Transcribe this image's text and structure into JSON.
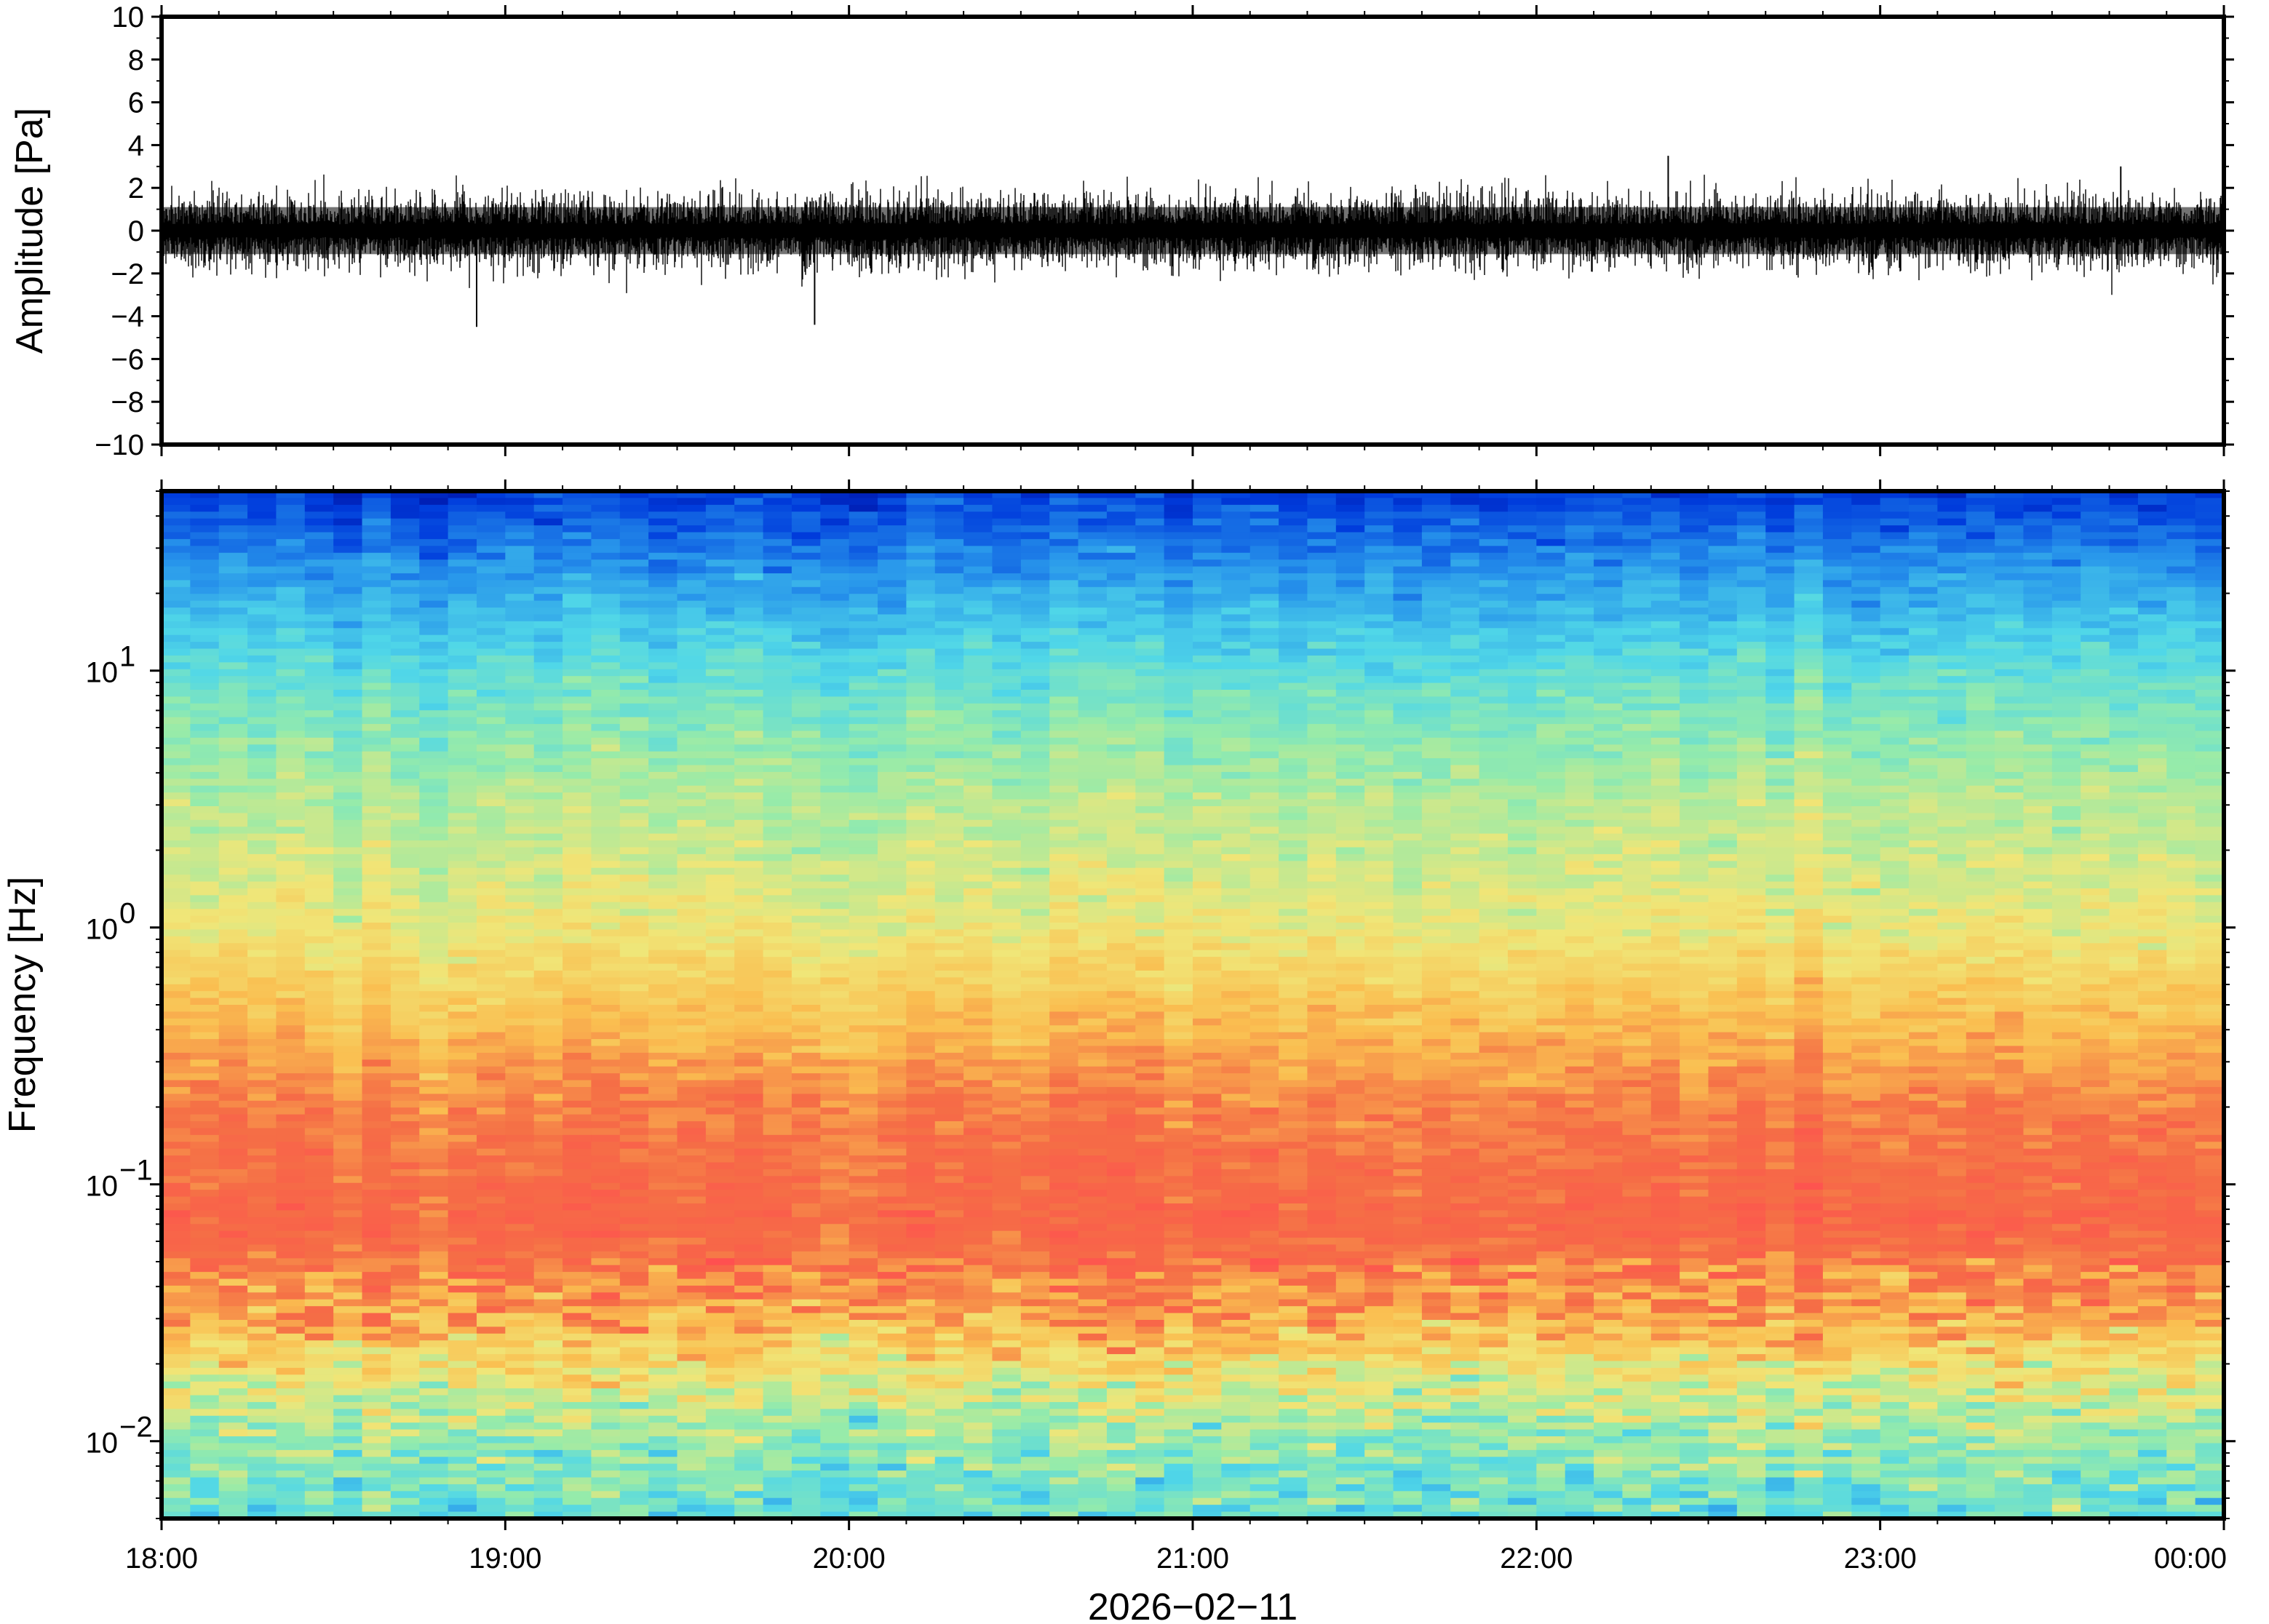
{
  "chart_data": [
    {
      "type": "line",
      "panel": "waveform",
      "ylabel": "Amplitude [Pa]",
      "ylim": [
        -10,
        10
      ],
      "yticks": [
        -10,
        -8,
        -6,
        -4,
        -2,
        0,
        2,
        4,
        6,
        8,
        10
      ],
      "ytick_labels": [
        "−10",
        "−8",
        "−6",
        "−4",
        "−2",
        "0",
        "2",
        "4",
        "6",
        "8",
        "10"
      ],
      "xlim": [
        "2026-02-11T18:00",
        "2026-02-12T00:00"
      ],
      "noise_envelope_pa": [
        -2,
        2
      ],
      "peak_values_pa": [
        {
          "x": "2026-02-11T18:55",
          "y": -4.5
        },
        {
          "x": "2026-02-11T19:54",
          "y": -4.4
        },
        {
          "x": "2026-02-11T22:23",
          "y": 3.5
        },
        {
          "x": "2026-02-11T23:42",
          "y": 3.0
        }
      ],
      "grid": false
    },
    {
      "type": "heatmap",
      "panel": "spectrogram",
      "ylabel": "Frequency [Hz]",
      "xlabel": "2026−02−11",
      "yscale": "log",
      "ylim": [
        0.005,
        50
      ],
      "yticks": [
        0.01,
        0.1,
        1,
        10
      ],
      "ytick_labels": [
        {
          "base": "10",
          "exp": "−2"
        },
        {
          "base": "10",
          "exp": "−1"
        },
        {
          "base": "10",
          "exp": "0"
        },
        {
          "base": "10",
          "exp": "1"
        }
      ],
      "xticks": [
        "2026-02-11T18:00",
        "2026-02-11T19:00",
        "2026-02-11T20:00",
        "2026-02-11T21:00",
        "2026-02-11T22:00",
        "2026-02-11T23:00",
        "2026-02-12T00:00"
      ],
      "xtick_labels": [
        "18:00",
        "19:00",
        "20:00",
        "21:00",
        "22:00",
        "23:00",
        "00:00"
      ],
      "colormap": "jet",
      "colors": {
        "high": "#ff5050",
        "mid": "#f0e070",
        "low": "#50d8e8",
        "lowest": "#00008c"
      },
      "relative_power_by_frequency_hz": [
        {
          "f": 0.005,
          "level": 0.42
        },
        {
          "f": 0.01,
          "level": 0.5
        },
        {
          "f": 0.018,
          "level": 0.62
        },
        {
          "f": 0.03,
          "level": 0.78
        },
        {
          "f": 0.07,
          "level": 0.9
        },
        {
          "f": 0.2,
          "level": 0.84
        },
        {
          "f": 0.5,
          "level": 0.72
        },
        {
          "f": 1,
          "level": 0.62
        },
        {
          "f": 3,
          "level": 0.55
        },
        {
          "f": 8,
          "level": 0.45
        },
        {
          "f": 20,
          "level": 0.3
        },
        {
          "f": 50,
          "level": 0.12
        }
      ],
      "grid": false
    }
  ]
}
